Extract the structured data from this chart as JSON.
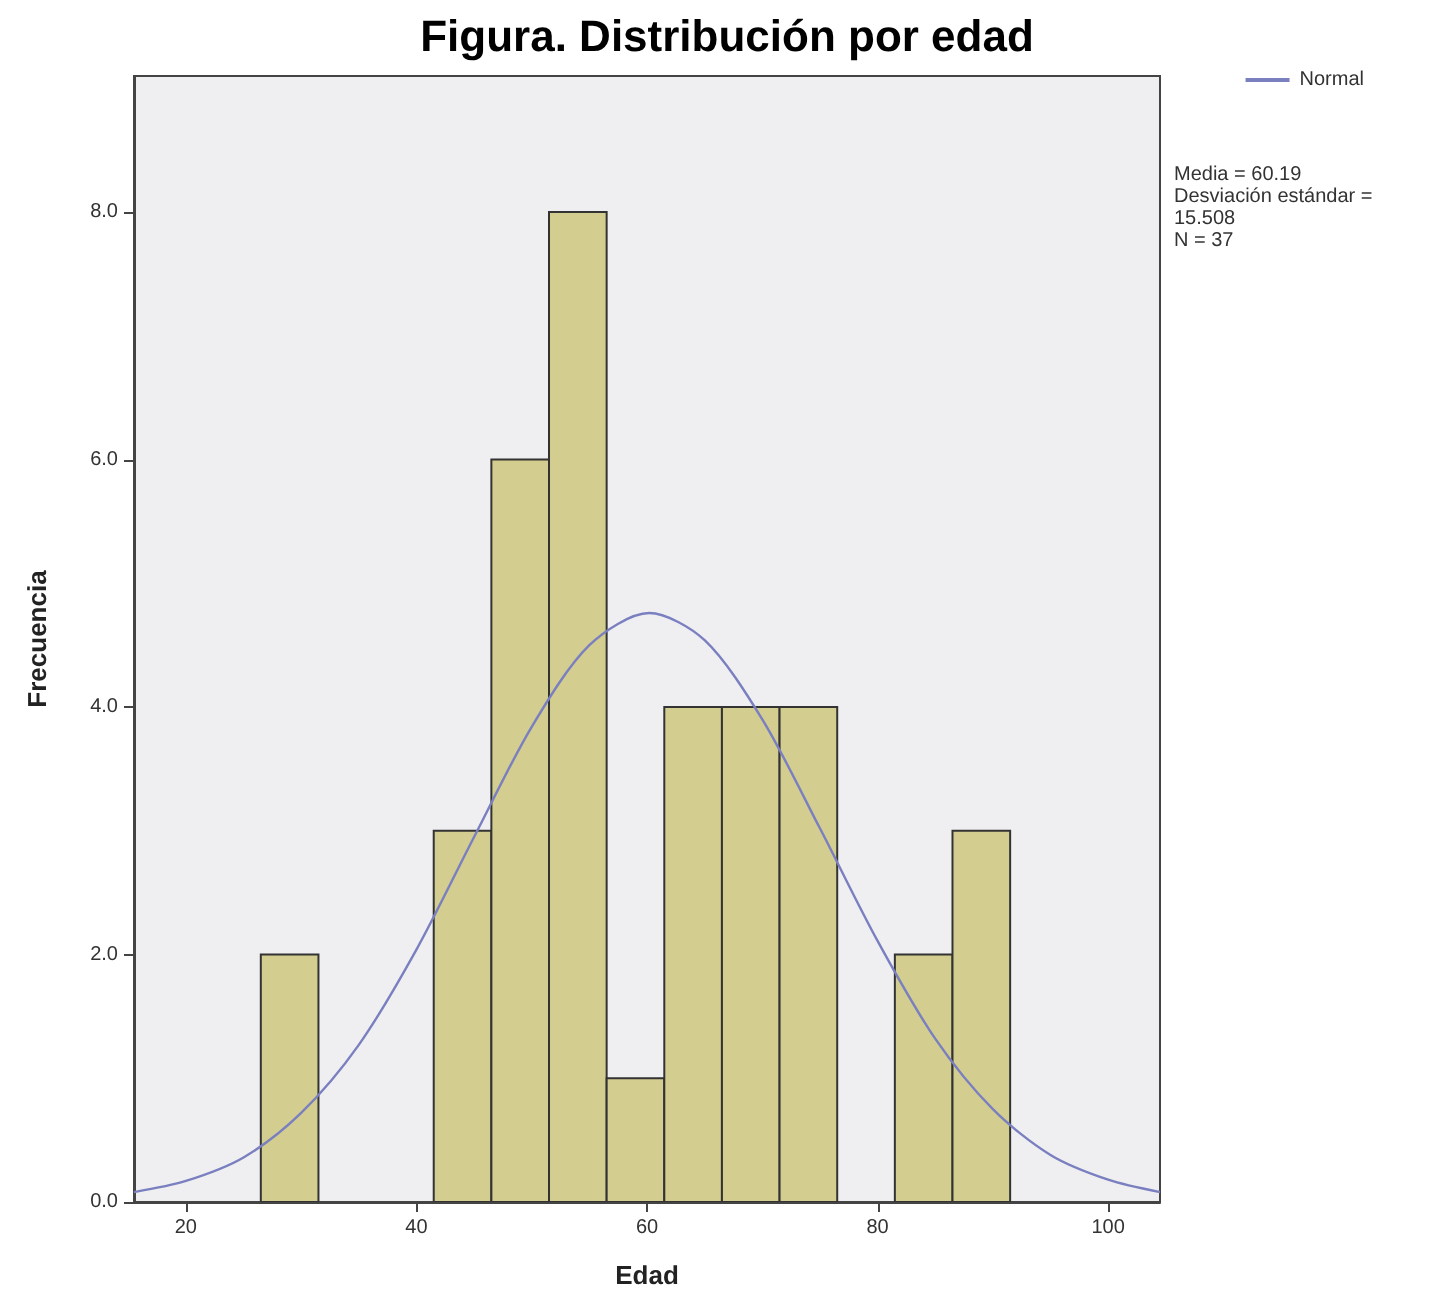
{
  "chart_data": {
    "type": "histogram",
    "title": "Figura. Distribución por edad",
    "xlabel": "Edad",
    "ylabel": "Frecuencia",
    "bins": [
      26.5,
      31.5,
      36.5,
      41.5,
      46.5,
      51.5,
      56.5,
      61.5,
      66.5,
      71.5,
      76.5,
      81.5,
      86.5,
      91.5
    ],
    "values": [
      2,
      0,
      0,
      3,
      6,
      8,
      1,
      4,
      4,
      4,
      0,
      2,
      3
    ],
    "color": "#d3cd90",
    "series": [
      {
        "type": "line",
        "name": "Normal",
        "color": "#7a7fc0",
        "x": [
          15.5,
          20,
          25,
          30,
          35,
          40,
          45,
          50,
          55,
          60.19,
          65,
          70,
          75,
          80,
          85,
          90,
          95,
          100,
          104.5
        ],
        "values": [
          0.08,
          0.17,
          0.36,
          0.72,
          1.27,
          2.04,
          2.95,
          3.84,
          4.5,
          4.76,
          4.54,
          3.9,
          3.02,
          2.11,
          1.32,
          0.75,
          0.38,
          0.18,
          0.08
        ]
      }
    ],
    "xlim": [
      15.5,
      104.5
    ],
    "xticks": [
      20,
      40,
      60,
      80,
      100
    ],
    "ylim": [
      0,
      9.1
    ],
    "yticks": [
      {
        "value": 0,
        "label": "0.0"
      },
      {
        "value": 2,
        "label": "2.0"
      },
      {
        "value": 4,
        "label": "4.0"
      },
      {
        "value": 6,
        "label": "6.0"
      },
      {
        "value": 8,
        "label": "8.0"
      }
    ],
    "annotations": [
      "Media = 60.19",
      "Desviación estándar = 15.508",
      "N = 37"
    ],
    "legend": "top right",
    "grid": false
  }
}
